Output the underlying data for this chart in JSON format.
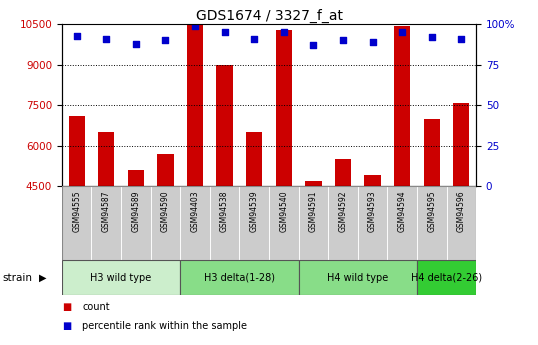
{
  "title": "GDS1674 / 3327_f_at",
  "samples": [
    "GSM94555",
    "GSM94587",
    "GSM94589",
    "GSM94590",
    "GSM94403",
    "GSM94538",
    "GSM94539",
    "GSM94540",
    "GSM94591",
    "GSM94592",
    "GSM94593",
    "GSM94594",
    "GSM94595",
    "GSM94596"
  ],
  "counts": [
    7100,
    6500,
    5100,
    5700,
    10500,
    9000,
    6500,
    10300,
    4700,
    5500,
    4900,
    10450,
    7000,
    7600
  ],
  "percentile_ranks": [
    93,
    91,
    88,
    90,
    99,
    95,
    91,
    95,
    87,
    90,
    89,
    95,
    92,
    91
  ],
  "ylim_left": [
    4500,
    10500
  ],
  "ylim_right": [
    0,
    100
  ],
  "yticks_left": [
    4500,
    6000,
    7500,
    9000,
    10500
  ],
  "yticks_right": [
    0,
    25,
    50,
    75,
    100
  ],
  "bar_color": "#cc0000",
  "dot_color": "#0000cc",
  "grid_color": "#000000",
  "group_list": [
    {
      "label": "H3 wild type",
      "indices": [
        0,
        1,
        2,
        3
      ],
      "color": "#cceecc"
    },
    {
      "label": "H3 delta(1-28)",
      "indices": [
        4,
        5,
        6,
        7
      ],
      "color": "#88dd88"
    },
    {
      "label": "H4 wild type",
      "indices": [
        8,
        9,
        10,
        11
      ],
      "color": "#88dd88"
    },
    {
      "label": "H4 delta(2-26)",
      "indices": [
        12,
        13
      ],
      "color": "#33cc33"
    }
  ],
  "xlabel_color": "#cc0000",
  "ylabel_right_color": "#0000cc",
  "title_color": "#000000",
  "tick_label_bg": "#cccccc",
  "legend_count_label": "count",
  "legend_pct_label": "percentile rank within the sample"
}
